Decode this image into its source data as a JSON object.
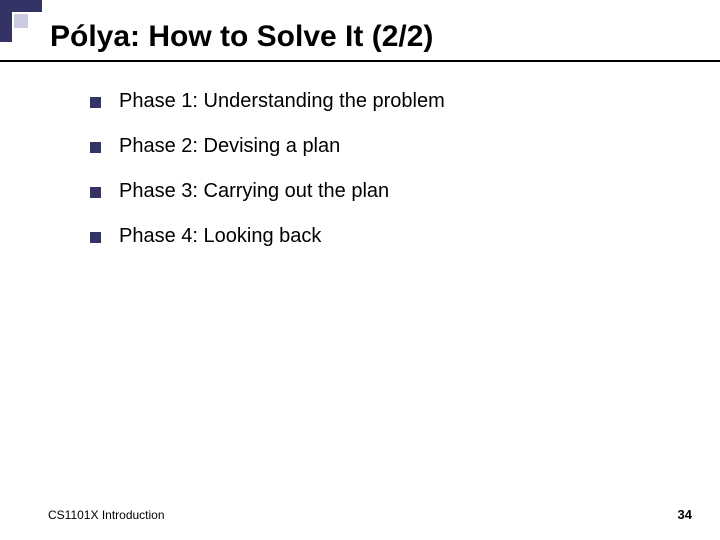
{
  "slide": {
    "title": "Pólya: How to Solve It (2/2)",
    "bullets": [
      "Phase 1: Understanding the problem",
      "Phase 2: Devising a plan",
      "Phase 3: Carrying out the plan",
      "Phase 4: Looking back"
    ],
    "footer": {
      "left": "CS1101X Introduction",
      "pageNumber": "34"
    },
    "colors": {
      "accent": "#333366",
      "accentLight": "#cccce0",
      "text": "#000000",
      "background": "#ffffff"
    }
  }
}
